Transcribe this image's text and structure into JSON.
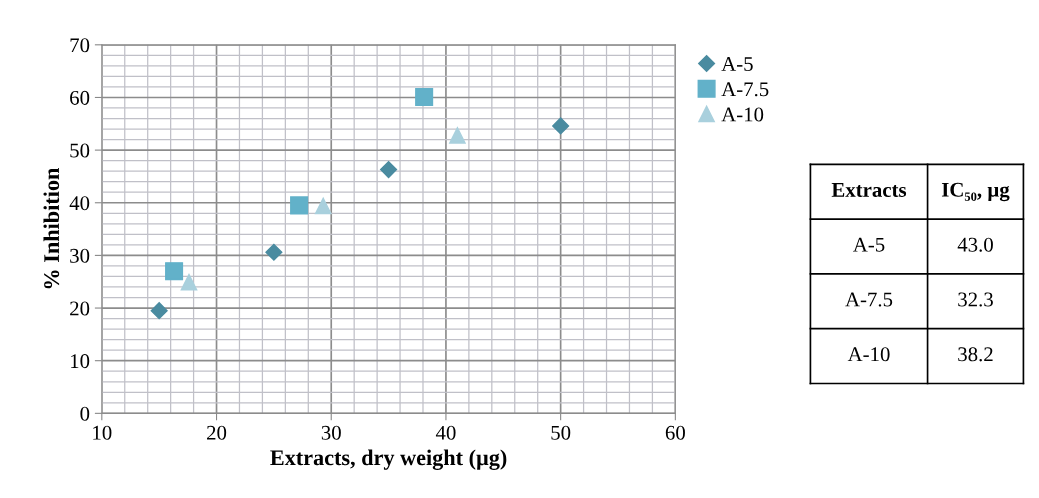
{
  "chart_data": [
    {
      "type": "scatter",
      "xlabel": "Extracts, dry weight (µg)",
      "ylabel": "% Inhibition",
      "xlim": [
        10,
        60
      ],
      "xticks": [
        10,
        20,
        30,
        40,
        50,
        60
      ],
      "ylim": [
        0,
        70
      ],
      "yticks": [
        0,
        10,
        20,
        30,
        40,
        50,
        60,
        70
      ],
      "grid": true,
      "legend": "top right",
      "series": [
        {
          "name": "A-5",
          "color": "#4a8ba0",
          "marker": "diamond",
          "x": [
            15,
            25,
            35,
            50
          ],
          "values": [
            19.5,
            30.6,
            46.3,
            54.6
          ]
        },
        {
          "name": "A-7.5",
          "color": "#62b1c9",
          "marker": "square",
          "x": [
            16.3,
            27.2,
            38.1
          ],
          "values": [
            27.0,
            39.5,
            60.1
          ]
        },
        {
          "name": "A-10",
          "color": "#a9d0dd",
          "marker": "triangle",
          "x": [
            17.6,
            29.3,
            41.0
          ],
          "values": [
            24.9,
            39.4,
            52.8
          ]
        }
      ]
    },
    {
      "type": "other",
      "annotations": [
        "Extracts",
        "IC₅₀, µg",
        "A-5",
        "43.0",
        "A-7.5",
        "32.3",
        "A-10",
        "38.2"
      ]
    }
  ]
}
